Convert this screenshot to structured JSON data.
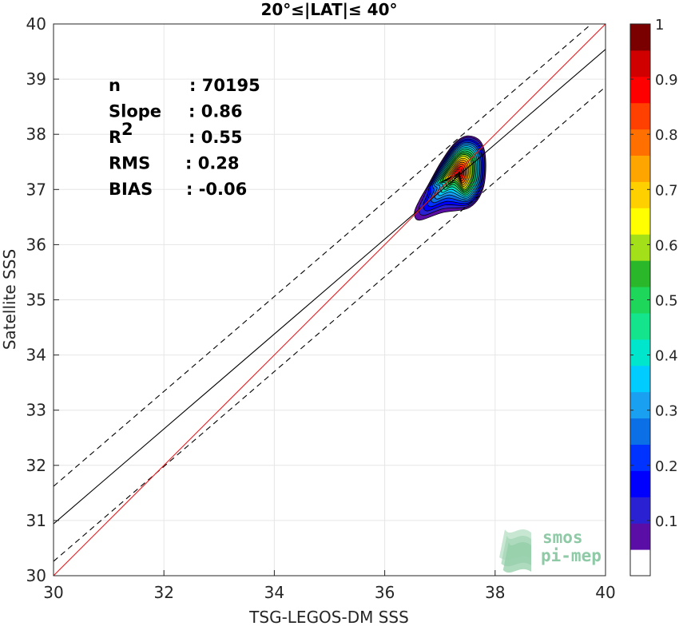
{
  "chart_data": {
    "type": "scatter",
    "title": "20°≤|LAT|≤ 40°",
    "xlabel": "TSG-LEGOS-DM SSS",
    "ylabel": "Satellite SSS",
    "xlim": [
      30,
      40
    ],
    "ylim": [
      30,
      40
    ],
    "xticks": [
      "30",
      "32",
      "34",
      "36",
      "38",
      "40"
    ],
    "yticks": [
      "30",
      "31",
      "32",
      "33",
      "34",
      "35",
      "36",
      "37",
      "38",
      "39",
      "40"
    ],
    "grid": true,
    "stats": [
      {
        "label": "n",
        "value": ": 70195"
      },
      {
        "label": "Slope",
        "value": ": 0.86"
      },
      {
        "label": "R",
        "sup": "2",
        "value": ": 0.55"
      },
      {
        "label": "RMS",
        "value": ": 0.28"
      },
      {
        "label": "BIAS",
        "value": ": -0.06"
      }
    ],
    "lines": {
      "identity": {
        "x": [
          30,
          40
        ],
        "y": [
          30,
          40
        ],
        "color": "#e8191c"
      },
      "fit": {
        "x": [
          30,
          40
        ],
        "y": [
          30.94,
          39.54
        ],
        "color": "#000000"
      },
      "upper_bound": {
        "x": [
          30,
          40
        ],
        "y": [
          31.62,
          40.22
        ],
        "color": "#000000",
        "style": "dashed"
      },
      "lower_bound": {
        "x": [
          30,
          40
        ],
        "y": [
          30.26,
          38.86
        ],
        "color": "#000000",
        "style": "dashed"
      }
    },
    "density": {
      "center": [
        37.35,
        37.3
      ],
      "levels": [
        0.05,
        0.1,
        0.15,
        0.2,
        0.25,
        0.3,
        0.35,
        0.4,
        0.45,
        0.5,
        0.55,
        0.6,
        0.65,
        0.7,
        0.75,
        0.8,
        0.85,
        0.9,
        0.95,
        1.0
      ],
      "outer_contour": [
        [
          37.5,
          38.0
        ],
        [
          37.75,
          37.9
        ],
        [
          37.85,
          37.55
        ],
        [
          37.8,
          37.0
        ],
        [
          37.55,
          36.65
        ],
        [
          37.0,
          36.5
        ],
        [
          36.55,
          36.35
        ],
        [
          36.45,
          36.5
        ],
        [
          36.55,
          36.75
        ],
        [
          36.75,
          37.05
        ],
        [
          37.0,
          37.5
        ],
        [
          37.25,
          37.85
        ]
      ]
    },
    "colorbar": {
      "ticks": [
        "0.1",
        "0.2",
        "0.3",
        "0.4",
        "0.5",
        "0.6",
        "0.7",
        "0.8",
        "0.9",
        "1"
      ],
      "range": [
        0,
        1
      ],
      "colors": [
        "#ffffff",
        "#5b0ea5",
        "#2a22d2",
        "#0000ff",
        "#0033ff",
        "#0b6fe6",
        "#1aa0f0",
        "#00ccff",
        "#00e6cc",
        "#14e58c",
        "#1ed65a",
        "#2ab82a",
        "#a3e01a",
        "#ffff00",
        "#ffd000",
        "#ffa500",
        "#ff7000",
        "#ff4000",
        "#ff0000",
        "#d00000",
        "#7a0000"
      ]
    },
    "logo": {
      "line1": "smos",
      "line2": "pi-mep"
    }
  }
}
